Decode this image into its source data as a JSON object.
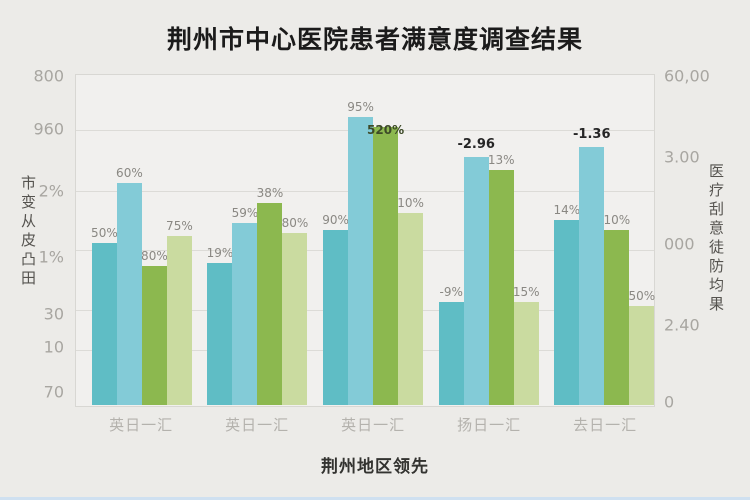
{
  "page": {
    "background_color": "#ecebe8",
    "bottom_strip_color": "#cfe0f0"
  },
  "chart_data": {
    "type": "bar",
    "title": "荆州市中心医院患者满意度调查结果",
    "caption": "荆州地区领先",
    "left_axis_label": "市变从皮凸田",
    "right_axis_label": "医疗刮意徒防均果",
    "left_ticks": [
      {
        "label": "800",
        "pos": 0.005
      },
      {
        "label": "960",
        "pos": 0.165
      },
      {
        "label": "2%",
        "pos": 0.35
      },
      {
        "label": "1%",
        "pos": 0.55
      },
      {
        "label": "30",
        "pos": 0.72
      },
      {
        "label": "10",
        "pos": 0.82
      },
      {
        "label": "70",
        "pos": 0.955
      }
    ],
    "right_ticks": [
      {
        "label": "60,00",
        "pos": 0.005
      },
      {
        "label": "3.00",
        "pos": 0.25
      },
      {
        "label": "000",
        "pos": 0.51
      },
      {
        "label": "2.40",
        "pos": 0.755
      },
      {
        "label": "0",
        "pos": 0.985
      }
    ],
    "gridline_pos": [
      0.165,
      0.35,
      0.53,
      0.71,
      0.83
    ],
    "series_colors": [
      "#5fbdc5",
      "#83cbd7",
      "#8cb84f",
      "#cadba0"
    ],
    "group_centers_pct": [
      11.4,
      31.4,
      51.4,
      71.4,
      91.4
    ],
    "categories": [
      "英日一汇",
      "英日一汇",
      "英日一汇",
      "扬日一汇",
      "去日一汇"
    ],
    "groups": [
      {
        "category": "英日一汇",
        "bars": [
          {
            "label": "50%",
            "height_pct": 49,
            "style": "gray"
          },
          {
            "label": "60%",
            "height_pct": 67,
            "style": "gray"
          },
          {
            "label": "80%",
            "height_pct": 42,
            "style": "gray"
          },
          {
            "label": "75%",
            "height_pct": 51,
            "style": "gray"
          }
        ]
      },
      {
        "category": "英日一汇",
        "bars": [
          {
            "label": "19%",
            "height_pct": 43,
            "style": "gray"
          },
          {
            "label": "59%",
            "height_pct": 55,
            "style": "gray"
          },
          {
            "label": "38%",
            "height_pct": 61,
            "style": "gray"
          },
          {
            "label": "80%",
            "height_pct": 52,
            "style": "gray"
          }
        ]
      },
      {
        "category": "英日一汇",
        "bars": [
          {
            "label": "90%",
            "height_pct": 53,
            "style": "gray"
          },
          {
            "label": "95%",
            "height_pct": 87,
            "style": "gray"
          },
          {
            "label": "520%",
            "height_pct": 84,
            "style": "onbar"
          },
          {
            "label": "10%",
            "height_pct": 58,
            "style": "gray"
          }
        ]
      },
      {
        "category": "扬日一汇",
        "bars": [
          {
            "label": "-9%",
            "height_pct": 31,
            "style": "gray"
          },
          {
            "label": "-2.96",
            "height_pct": 75,
            "style": "bold"
          },
          {
            "label": "13%",
            "height_pct": 71,
            "style": "gray"
          },
          {
            "label": "15%",
            "height_pct": 31,
            "style": "gray"
          }
        ]
      },
      {
        "category": "去日一汇",
        "bars": [
          {
            "label": "14%",
            "height_pct": 56,
            "style": "gray"
          },
          {
            "label": "-1.36",
            "height_pct": 78,
            "style": "bold"
          },
          {
            "label": "10%",
            "height_pct": 53,
            "style": "gray"
          },
          {
            "label": "50%",
            "height_pct": 30,
            "style": "gray"
          }
        ]
      }
    ]
  }
}
